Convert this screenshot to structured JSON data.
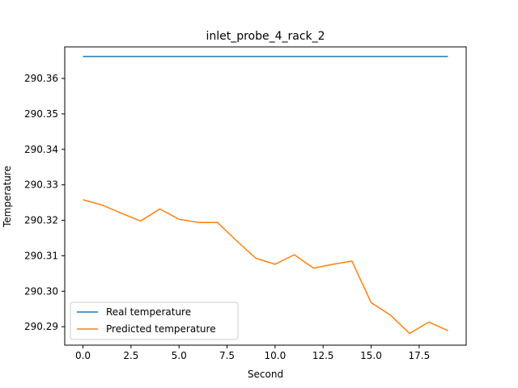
{
  "chart_data": {
    "type": "line",
    "title": "inlet_probe_4_rack_2",
    "xlabel": "Second",
    "ylabel": "Temperature",
    "xlim": [
      -0.95,
      19.95
    ],
    "ylim": [
      290.2848,
      290.3689
    ],
    "x_ticks": [
      0.0,
      2.5,
      5.0,
      7.5,
      10.0,
      12.5,
      15.0,
      17.5
    ],
    "x_tick_labels": [
      "0.0",
      "2.5",
      "5.0",
      "7.5",
      "10.0",
      "12.5",
      "15.0",
      "17.5"
    ],
    "y_ticks": [
      290.29,
      290.3,
      290.31,
      290.32,
      290.33,
      290.34,
      290.35,
      290.36
    ],
    "y_tick_labels": [
      "290.29",
      "290.30",
      "290.31",
      "290.32",
      "290.33",
      "290.34",
      "290.35",
      "290.36"
    ],
    "x": [
      0,
      1,
      2,
      3,
      4,
      5,
      6,
      7,
      8,
      9,
      10,
      11,
      12,
      13,
      14,
      15,
      16,
      17,
      18,
      19
    ],
    "series": [
      {
        "name": "Real temperature",
        "color": "#1f77b4",
        "values": [
          290.3662,
          290.3662,
          290.3662,
          290.3662,
          290.3662,
          290.3662,
          290.3662,
          290.3662,
          290.3662,
          290.3662,
          290.3662,
          290.3662,
          290.3662,
          290.3662,
          290.3662,
          290.3662,
          290.3662,
          290.3662,
          290.3662,
          290.3662
        ]
      },
      {
        "name": "Predicted temperature",
        "color": "#ff7f0e",
        "values": [
          290.3258,
          290.3243,
          290.322,
          290.3198,
          290.3232,
          290.3203,
          290.3194,
          290.3194,
          290.3142,
          290.3093,
          290.3076,
          290.3103,
          290.3065,
          290.3076,
          290.3085,
          290.2968,
          290.2933,
          290.2881,
          290.2913,
          290.2889
        ]
      }
    ],
    "legend": "lower-left",
    "grid": false
  }
}
